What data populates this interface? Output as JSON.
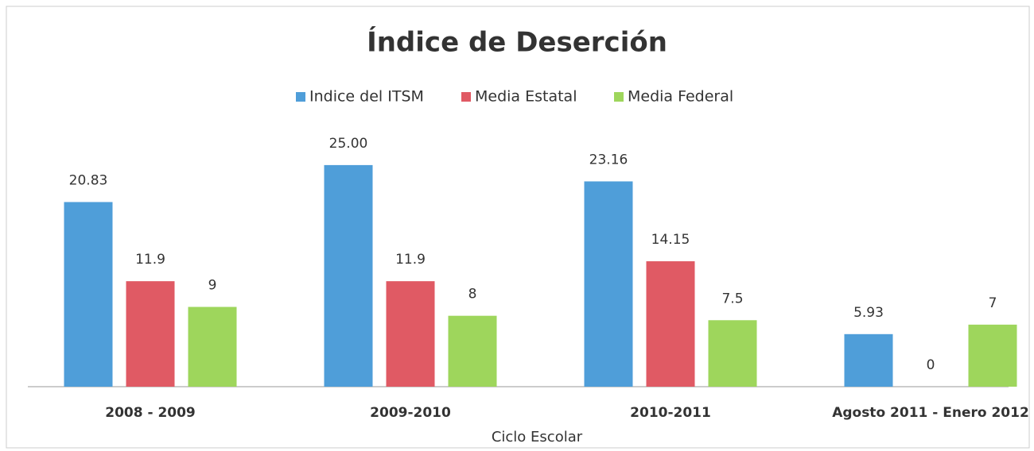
{
  "chart_data": {
    "type": "bar",
    "title": "Índice de Deserción",
    "x_label": "Ciclo Escolar",
    "categories": [
      "2008 - 2009",
      "2009-2010",
      "2010-2011",
      "Agosto 2011 - Enero 2012"
    ],
    "series": [
      {
        "name": "Indice del ITSM",
        "color": "#4f9ed9",
        "values": [
          20.83,
          25,
          23.16,
          5.93
        ],
        "value_labels": [
          "20.83",
          "25.00",
          "23.16",
          "5.93"
        ]
      },
      {
        "name": "Media Estatal",
        "color": "#e05a64",
        "values": [
          11.9,
          11.9,
          14.15,
          0
        ]
      },
      {
        "name": "Media Federal",
        "color": "#9ed65c",
        "values": [
          9,
          8,
          7.5,
          7
        ]
      }
    ],
    "legend": "top"
  }
}
